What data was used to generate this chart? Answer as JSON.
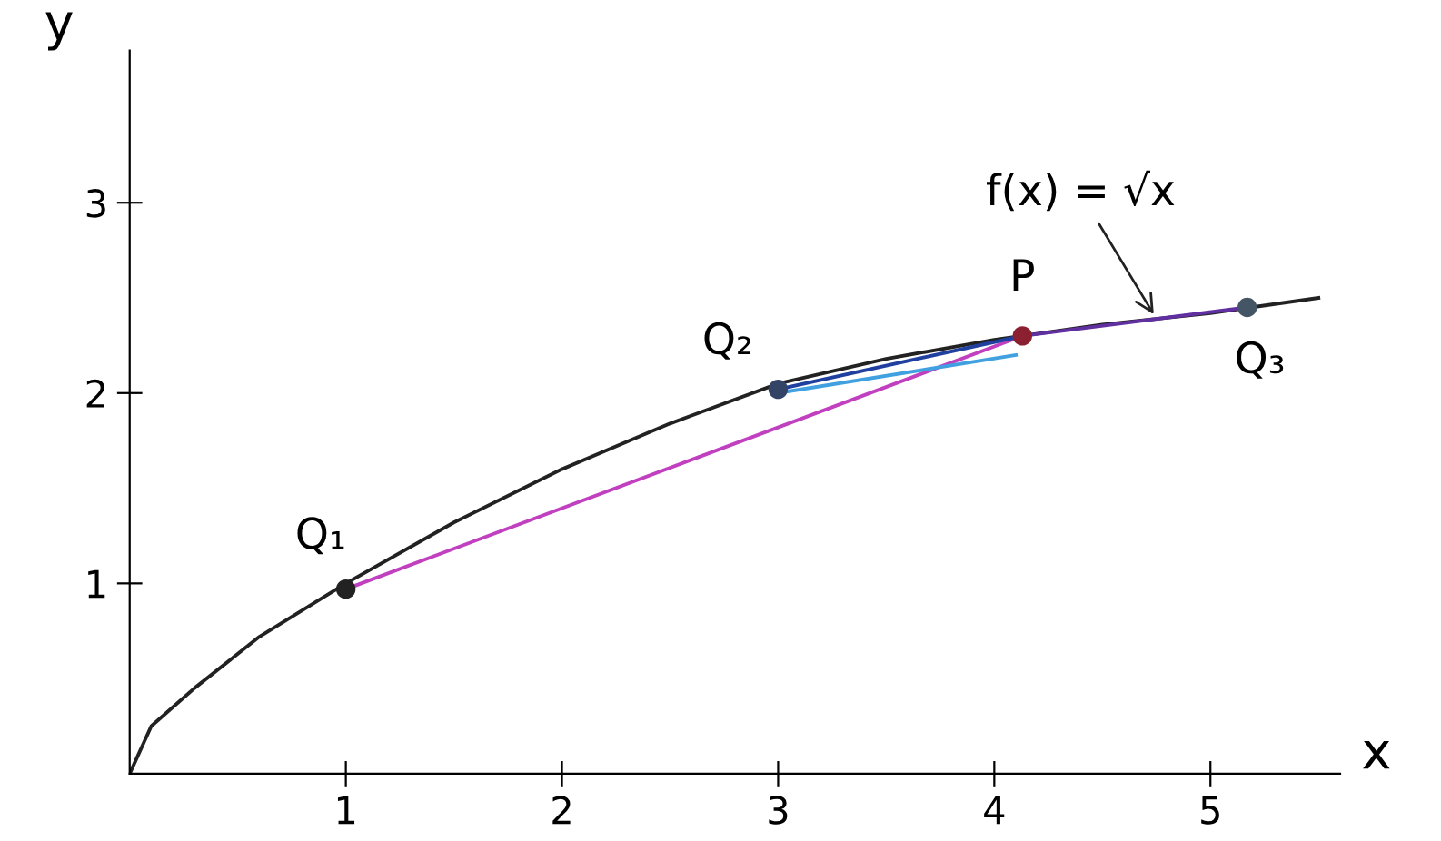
{
  "chart_data": {
    "type": "line",
    "xlabel": "x",
    "ylabel": "y",
    "xlim": [
      0,
      5.6
    ],
    "ylim": [
      0,
      3.8
    ],
    "xticks": [
      1,
      2,
      3,
      4,
      5
    ],
    "yticks": [
      1,
      2,
      3
    ],
    "grid": false,
    "legend": false,
    "line_style": "solid",
    "series": [
      {
        "color": "#222222",
        "x": [
          0,
          0.1,
          0.3,
          0.6,
          1,
          1.5,
          2,
          2.5,
          3,
          3.5,
          4,
          4.5,
          5,
          5.5
        ],
        "values": [
          0,
          0.25,
          0.45,
          0.72,
          1,
          1.32,
          1.6,
          1.84,
          2.05,
          2.18,
          2.28,
          2.36,
          2.42,
          2.5
        ]
      },
      {
        "color": "#c040c0",
        "x": [
          1,
          4.13
        ],
        "values": [
          0.97,
          2.3
        ]
      },
      {
        "color": "#40a0e0",
        "x": [
          3,
          4.1
        ],
        "values": [
          2.0,
          2.2
        ]
      },
      {
        "color": "#2040a0",
        "x": [
          3,
          4.13
        ],
        "values": [
          2.02,
          2.3
        ]
      },
      {
        "color": "#6030a0",
        "x": [
          4.13,
          5.17
        ],
        "values": [
          2.3,
          2.45
        ]
      },
      {
        "type": "scatter",
        "marker": "circle",
        "colors": [
          "#222222",
          "#334466",
          "#8a2030",
          "#445566"
        ],
        "x": [
          1,
          3,
          4.13,
          5.17
        ],
        "values": [
          0.97,
          2.02,
          2.3,
          2.45
        ]
      }
    ],
    "annotations": [
      {
        "text": "Q₁",
        "x": 1,
        "y": 0.97
      },
      {
        "text": "Q₂",
        "x": 3,
        "y": 2.02
      },
      {
        "text": "P",
        "x": 4.13,
        "y": 2.3
      },
      {
        "text": "Q₃",
        "x": 5.17,
        "y": 2.45
      },
      {
        "text": "f(x) = √x",
        "x": 4.75,
        "y": 2.39
      }
    ]
  }
}
